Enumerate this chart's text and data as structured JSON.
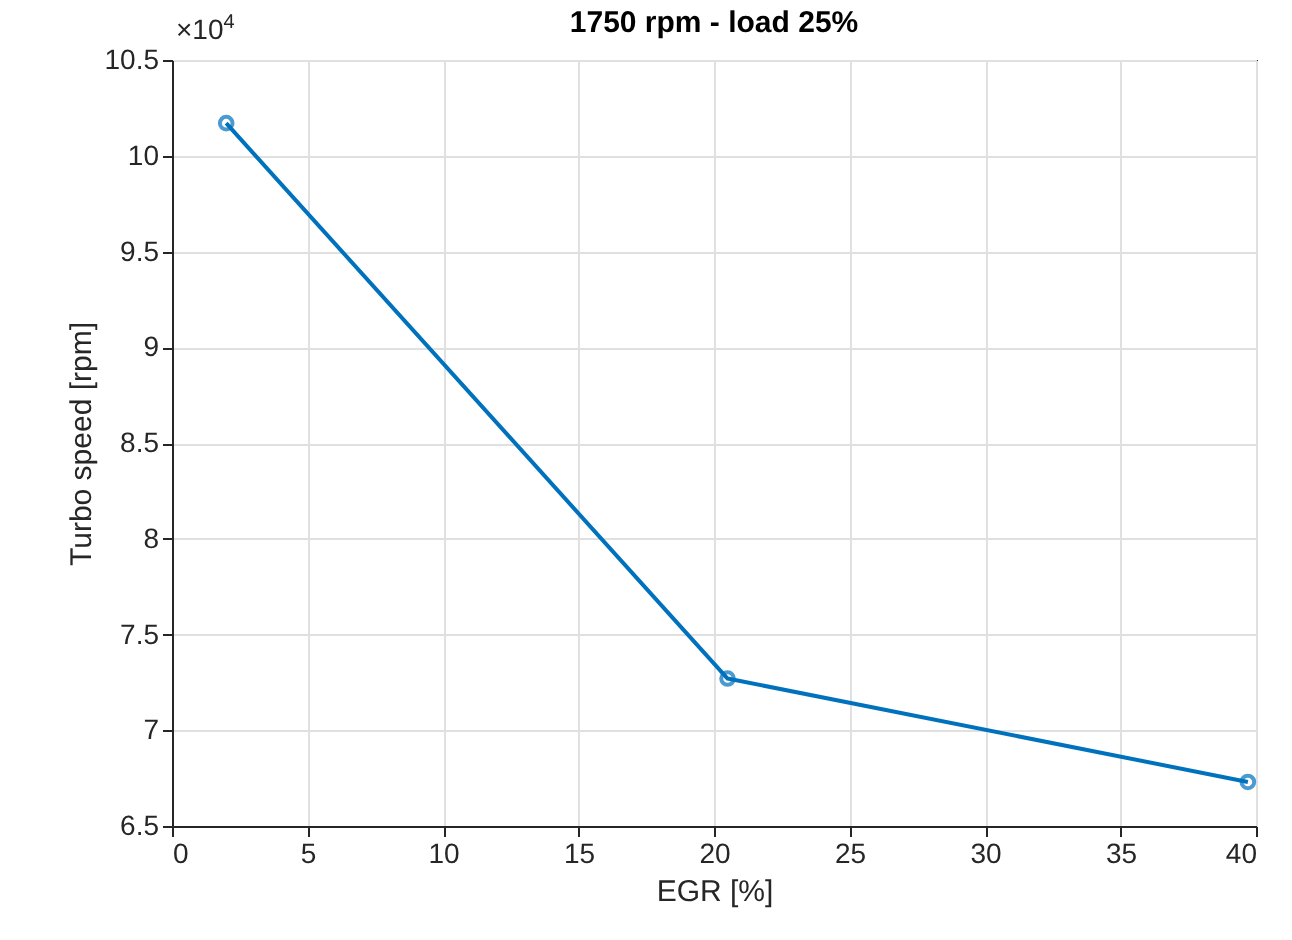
{
  "chart_data": {
    "type": "line",
    "title": "1750 rpm - load 25%",
    "xlabel": "EGR [%]",
    "ylabel": "Turbo speed [rpm]",
    "annotations": [
      "×10$^{4}$"
    ],
    "x": [
      2,
      20.5,
      39.7
    ],
    "series": [
      {
        "color": "#0072bd",
        "values": [
          10.17,
          7.27,
          6.73
        ]
      }
    ],
    "xlim": [
      0,
      40
    ],
    "xticks": [
      0,
      5,
      10,
      15,
      20,
      25,
      30,
      35,
      40
    ],
    "ylim": [
      6.5,
      10.5
    ],
    "yticks": [
      6.5,
      7,
      7.5,
      8,
      8.5,
      9,
      9.5,
      10,
      10.5
    ],
    "grid": true,
    "marker": "circle",
    "line_style": "solid",
    "legend": false
  }
}
